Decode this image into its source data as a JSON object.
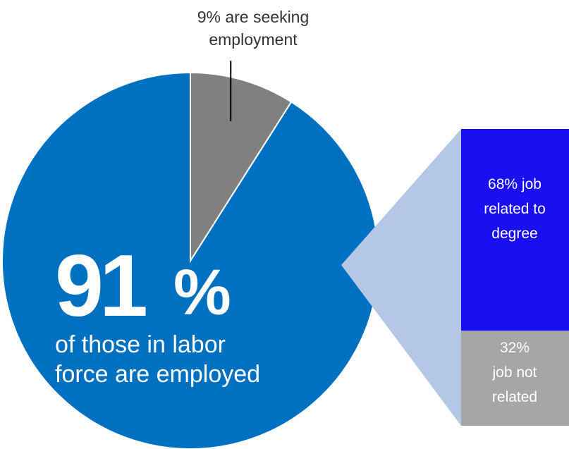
{
  "colors": {
    "employed": "#0070c0",
    "seeking": "#808080",
    "connector": "#b4c7e7",
    "related": "#1a0ff0",
    "not_related": "#a6a6a6",
    "label_dark": "#333333",
    "label_light": "#ffffff"
  },
  "chart_data": [
    {
      "type": "pie",
      "slices": [
        {
          "label": "are seeking employment",
          "value": 9
        },
        {
          "label": "of those in labor force are employed",
          "value": 91
        }
      ],
      "annotations": {
        "seeking_lines": [
          "9% are seeking",
          "employment"
        ],
        "big_number": "91",
        "big_percent": "%",
        "employed_lines": [
          "of those in labor",
          "force are employed"
        ]
      }
    },
    {
      "type": "bar",
      "stacked": true,
      "segments": [
        {
          "label": "job related to degree",
          "value": 68
        },
        {
          "label": "job not related",
          "value": 32
        }
      ],
      "annotations": {
        "related_lines": [
          "68% job",
          "related to",
          "degree"
        ],
        "not_related_lines": [
          "32%",
          "job not",
          "related"
        ]
      }
    }
  ]
}
